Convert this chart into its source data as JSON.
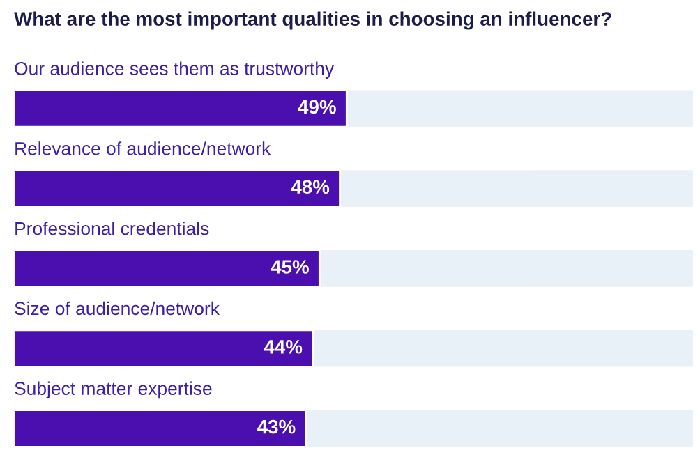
{
  "chart_data": {
    "type": "bar",
    "orientation": "horizontal",
    "title": "What are the most important qualities in choosing an influencer?",
    "categories": [
      "Our audience sees them as trustworthy",
      "Relevance of audience/network",
      "Professional credentials",
      "Size of audience/network",
      "Subject matter expertise"
    ],
    "values": [
      49,
      48,
      45,
      44,
      43
    ],
    "value_labels": [
      "49%",
      "48%",
      "45%",
      "44%",
      "43%"
    ],
    "color": "#4a0fae",
    "xlim": [
      0,
      100
    ]
  }
}
